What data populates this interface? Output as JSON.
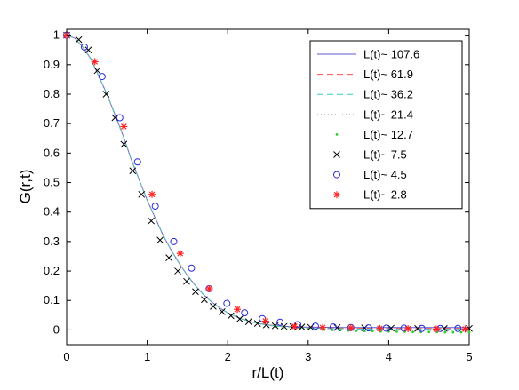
{
  "chart_data": {
    "type": "line",
    "xlabel": "r/L(t)",
    "ylabel": "G(r,t)",
    "xlim": [
      0,
      5
    ],
    "ylim": [
      -0.05,
      1.02
    ],
    "x_ticks": [
      0,
      1,
      2,
      3,
      4,
      5
    ],
    "y_ticks": [
      0,
      0.1,
      0.2,
      0.3,
      0.4,
      0.5,
      0.6,
      0.7,
      0.8,
      0.9,
      1
    ],
    "grid": false,
    "legend_position": "top-right",
    "series": [
      {
        "name": "L(t)~ 107.6",
        "style": "solid",
        "color": "#5b5bd6",
        "x": [
          0,
          0.1,
          0.2,
          0.3,
          0.4,
          0.5,
          0.6,
          0.7,
          0.8,
          0.9,
          1.0,
          1.1,
          1.2,
          1.3,
          1.4,
          1.5,
          1.6,
          1.7,
          1.8,
          1.9,
          2.0,
          2.1,
          2.2,
          2.3,
          2.4,
          2.5,
          2.6,
          2.7,
          2.8,
          2.9,
          3.0,
          3.2,
          3.4,
          3.6,
          3.8,
          4.0,
          4.2,
          4.4,
          4.6,
          4.8,
          5.0
        ],
        "y": [
          1.0,
          0.99,
          0.96,
          0.92,
          0.86,
          0.8,
          0.73,
          0.66,
          0.58,
          0.51,
          0.44,
          0.38,
          0.32,
          0.27,
          0.225,
          0.185,
          0.15,
          0.12,
          0.095,
          0.075,
          0.058,
          0.045,
          0.035,
          0.027,
          0.021,
          0.017,
          0.014,
          0.012,
          0.011,
          0.01,
          0.009,
          0.009,
          0.008,
          0.008,
          0.008,
          0.008,
          0.008,
          0.008,
          0.008,
          0.008,
          0.008
        ]
      },
      {
        "name": "L(t)~ 61.9",
        "style": "dashed",
        "color": "#ff4d4d",
        "x": [
          0,
          0.1,
          0.2,
          0.3,
          0.4,
          0.5,
          0.6,
          0.7,
          0.8,
          0.9,
          1.0,
          1.1,
          1.2,
          1.3,
          1.4,
          1.5,
          1.6,
          1.7,
          1.8,
          1.9,
          2.0,
          2.1,
          2.2,
          2.3,
          2.4,
          2.5,
          2.6,
          2.7,
          2.8,
          2.9,
          3.0,
          3.2,
          3.4,
          3.6,
          3.8,
          4.0,
          4.2,
          4.4,
          4.6,
          4.8,
          5.0
        ],
        "y": [
          1.0,
          0.99,
          0.96,
          0.92,
          0.86,
          0.8,
          0.73,
          0.66,
          0.58,
          0.51,
          0.44,
          0.38,
          0.32,
          0.27,
          0.225,
          0.185,
          0.15,
          0.12,
          0.095,
          0.075,
          0.058,
          0.045,
          0.035,
          0.027,
          0.021,
          0.017,
          0.014,
          0.012,
          0.01,
          0.009,
          0.008,
          0.007,
          0.006,
          0.006,
          0.005,
          0.005,
          0.005,
          0.005,
          0.005,
          0.005,
          0.005
        ]
      },
      {
        "name": "L(t)~ 36.2",
        "style": "dashed",
        "color": "#33cccc",
        "x": [
          0,
          0.1,
          0.2,
          0.3,
          0.4,
          0.5,
          0.6,
          0.7,
          0.8,
          0.9,
          1.0,
          1.1,
          1.2,
          1.3,
          1.4,
          1.5,
          1.6,
          1.7,
          1.8,
          1.9,
          2.0,
          2.1,
          2.2,
          2.3,
          2.4,
          2.5,
          2.6,
          2.7,
          2.8,
          2.9,
          3.0,
          3.2,
          3.4,
          3.6,
          3.8,
          4.0,
          4.2,
          4.4,
          4.6,
          4.8,
          5.0
        ],
        "y": [
          1.0,
          0.99,
          0.96,
          0.92,
          0.86,
          0.8,
          0.73,
          0.66,
          0.58,
          0.51,
          0.44,
          0.38,
          0.32,
          0.27,
          0.225,
          0.185,
          0.15,
          0.12,
          0.095,
          0.075,
          0.058,
          0.045,
          0.035,
          0.027,
          0.021,
          0.016,
          0.013,
          0.011,
          0.009,
          0.008,
          0.007,
          0.005,
          0.004,
          0.003,
          0.003,
          0.002,
          0.002,
          0.002,
          0.002,
          0.002,
          0.002
        ]
      },
      {
        "name": "L(t)~ 21.4",
        "style": "dotted",
        "color": "#aaaaaa",
        "x": [
          0,
          0.1,
          0.2,
          0.3,
          0.4,
          0.5,
          0.6,
          0.7,
          0.8,
          0.9,
          1.0,
          1.1,
          1.2,
          1.3,
          1.4,
          1.5,
          1.6,
          1.7,
          1.8,
          1.9,
          2.0,
          2.1,
          2.2,
          2.3,
          2.4,
          2.5,
          2.6,
          2.7,
          2.8,
          2.9,
          3.0,
          3.2,
          3.4,
          3.6,
          3.8,
          4.0,
          4.2,
          4.4,
          4.6,
          4.8,
          5.0
        ],
        "y": [
          1.0,
          0.99,
          0.96,
          0.92,
          0.86,
          0.8,
          0.73,
          0.66,
          0.58,
          0.51,
          0.44,
          0.38,
          0.32,
          0.27,
          0.225,
          0.185,
          0.15,
          0.12,
          0.095,
          0.075,
          0.058,
          0.045,
          0.035,
          0.027,
          0.02,
          0.015,
          0.012,
          0.009,
          0.007,
          0.006,
          0.005,
          0.003,
          0.001,
          0.0,
          -0.001,
          -0.002,
          -0.002,
          -0.003,
          -0.003,
          -0.003,
          -0.003
        ]
      },
      {
        "name": "L(t)~ 12.7",
        "style": "dot",
        "color": "#33cc33",
        "x": [
          2.6,
          2.7,
          2.8,
          2.9,
          3.0,
          3.1,
          3.2,
          3.3,
          3.4,
          3.5,
          3.6,
          3.7,
          3.8,
          3.9,
          4.0,
          4.1,
          4.2,
          4.3,
          4.4,
          4.5,
          4.6,
          4.7,
          4.8,
          4.9,
          5.0
        ],
        "y": [
          0.012,
          0.009,
          0.007,
          0.005,
          0.003,
          0.002,
          0.001,
          0.0,
          -0.001,
          -0.002,
          -0.003,
          -0.004,
          -0.004,
          -0.005,
          -0.005,
          -0.006,
          -0.006,
          -0.007,
          -0.007,
          -0.007,
          -0.007,
          -0.008,
          -0.008,
          -0.008,
          -0.008
        ]
      },
      {
        "name": "L(t)~ 7.5",
        "style": "x",
        "color": "#000000",
        "x": [
          0.0,
          0.15,
          0.27,
          0.38,
          0.49,
          0.6,
          0.71,
          0.82,
          0.93,
          1.05,
          1.16,
          1.27,
          1.38,
          1.49,
          1.6,
          1.71,
          1.82,
          1.93,
          2.04,
          2.15,
          2.26,
          2.37,
          2.48,
          2.59,
          2.7,
          2.81,
          2.92,
          3.03,
          3.36,
          3.7,
          4.03,
          4.36,
          4.69,
          5.0
        ],
        "y": [
          1.0,
          0.985,
          0.95,
          0.88,
          0.8,
          0.72,
          0.63,
          0.54,
          0.46,
          0.37,
          0.305,
          0.245,
          0.2,
          0.165,
          0.13,
          0.103,
          0.08,
          0.062,
          0.048,
          0.037,
          0.028,
          0.022,
          0.017,
          0.014,
          0.012,
          0.011,
          0.01,
          0.009,
          0.008,
          0.007,
          0.006,
          0.005,
          0.005,
          0.005
        ]
      },
      {
        "name": "L(t)~ 4.5",
        "style": "circle",
        "color": "#2b2bdd",
        "x": [
          0.0,
          0.22,
          0.44,
          0.66,
          0.88,
          1.1,
          1.33,
          1.55,
          1.77,
          1.99,
          2.21,
          2.43,
          2.65,
          2.87,
          3.09,
          3.31,
          3.53,
          3.75,
          3.97,
          4.19,
          4.41,
          4.64,
          4.86
        ],
        "y": [
          1.0,
          0.96,
          0.86,
          0.72,
          0.57,
          0.42,
          0.3,
          0.21,
          0.14,
          0.09,
          0.058,
          0.038,
          0.026,
          0.018,
          0.013,
          0.01,
          0.008,
          0.007,
          0.006,
          0.006,
          0.005,
          0.005,
          0.005
        ]
      },
      {
        "name": "L(t)~ 2.8",
        "style": "asterisk",
        "color": "#ff2222",
        "x": [
          0.0,
          0.35,
          0.71,
          1.06,
          1.41,
          1.77,
          2.12,
          2.47,
          2.83,
          3.18,
          3.53,
          3.89,
          4.24,
          4.59,
          4.95
        ],
        "y": [
          1.0,
          0.91,
          0.69,
          0.46,
          0.26,
          0.14,
          0.07,
          0.03,
          0.012,
          0.008,
          0.007,
          0.005,
          0.004,
          0.003,
          0.003
        ]
      }
    ]
  }
}
